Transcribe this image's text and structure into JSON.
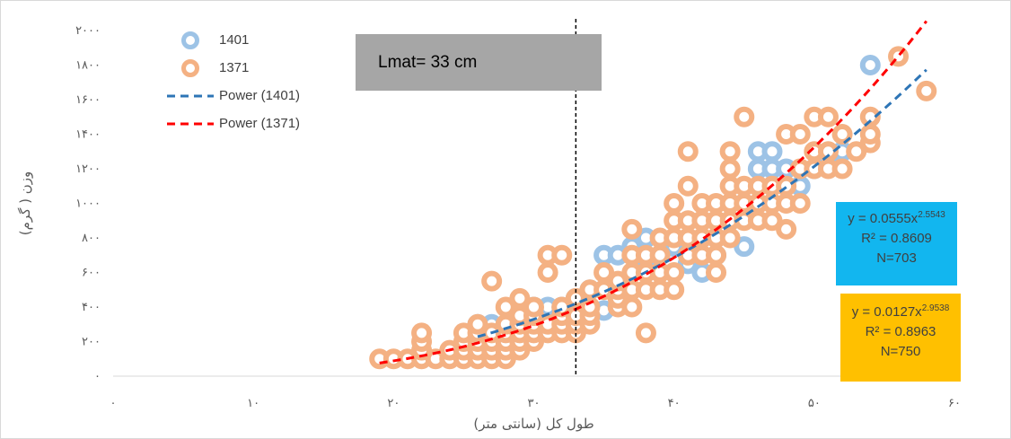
{
  "chart_data": {
    "type": "scatter",
    "title": "",
    "xlabel": "طول کل (سانتی متر)",
    "ylabel": "وزن ( گرم)",
    "xlim": [
      0,
      60
    ],
    "ylim": [
      0,
      2000
    ],
    "x_ticks": [
      0,
      10,
      20,
      30,
      40,
      50,
      60
    ],
    "x_tick_labels": [
      "۰",
      "۱۰",
      "۲۰",
      "۳۰",
      "۴۰",
      "۵۰",
      "۶۰"
    ],
    "y_ticks": [
      0,
      200,
      400,
      600,
      800,
      1000,
      1200,
      1400,
      1600,
      1800,
      2000
    ],
    "y_tick_labels": [
      "۰",
      "۲۰۰",
      "۴۰۰",
      "۶۰۰",
      "۸۰۰",
      "۱۰۰۰",
      "۱۲۰۰",
      "۱۴۰۰",
      "۱۶۰۰",
      "۱۸۰۰",
      "۲۰۰۰"
    ],
    "grid": false,
    "legend_position": "top-left",
    "legend": [
      "1401",
      "1371",
      "Power (1401)",
      "Power (1371)"
    ],
    "reference_line": {
      "x": 33,
      "label": "Lmat= 33 cm"
    },
    "series": [
      {
        "name": "1401",
        "color": "#9dc3e6",
        "points": [
          [
            26,
            300
          ],
          [
            27,
            300
          ],
          [
            28,
            300
          ],
          [
            29,
            350
          ],
          [
            30,
            400
          ],
          [
            31,
            400
          ],
          [
            32,
            400
          ],
          [
            33,
            450
          ],
          [
            34,
            500
          ],
          [
            35,
            380
          ],
          [
            35,
            700
          ],
          [
            36,
            700
          ],
          [
            37,
            750
          ],
          [
            38,
            800
          ],
          [
            38,
            650
          ],
          [
            39,
            700
          ],
          [
            40,
            750
          ],
          [
            41,
            650
          ],
          [
            42,
            600
          ],
          [
            43,
            700
          ],
          [
            44,
            900
          ],
          [
            45,
            1000
          ],
          [
            45,
            750
          ],
          [
            46,
            1200
          ],
          [
            46,
            1300
          ],
          [
            47,
            1300
          ],
          [
            47,
            1200
          ],
          [
            48,
            1200
          ],
          [
            49,
            1100
          ],
          [
            50,
            1200
          ],
          [
            51,
            1250
          ],
          [
            52,
            1300
          ],
          [
            54,
            1800
          ]
        ]
      },
      {
        "name": "1371",
        "color": "#f4b183",
        "points": [
          [
            19,
            100
          ],
          [
            20,
            100
          ],
          [
            21,
            100
          ],
          [
            22,
            100
          ],
          [
            22,
            150
          ],
          [
            22,
            200
          ],
          [
            22,
            250
          ],
          [
            23,
            100
          ],
          [
            24,
            100
          ],
          [
            24,
            150
          ],
          [
            25,
            100
          ],
          [
            25,
            150
          ],
          [
            25,
            200
          ],
          [
            25,
            250
          ],
          [
            26,
            100
          ],
          [
            26,
            150
          ],
          [
            26,
            200
          ],
          [
            26,
            250
          ],
          [
            26,
            300
          ],
          [
            27,
            100
          ],
          [
            27,
            150
          ],
          [
            27,
            200
          ],
          [
            27,
            250
          ],
          [
            27,
            550
          ],
          [
            28,
            100
          ],
          [
            28,
            150
          ],
          [
            28,
            200
          ],
          [
            28,
            250
          ],
          [
            28,
            300
          ],
          [
            28,
            400
          ],
          [
            29,
            150
          ],
          [
            29,
            200
          ],
          [
            29,
            250
          ],
          [
            29,
            300
          ],
          [
            29,
            350
          ],
          [
            29,
            450
          ],
          [
            30,
            200
          ],
          [
            30,
            250
          ],
          [
            30,
            300
          ],
          [
            30,
            350
          ],
          [
            30,
            400
          ],
          [
            31,
            250
          ],
          [
            31,
            300
          ],
          [
            31,
            600
          ],
          [
            31,
            700
          ],
          [
            32,
            250
          ],
          [
            32,
            300
          ],
          [
            32,
            350
          ],
          [
            32,
            400
          ],
          [
            32,
            700
          ],
          [
            33,
            250
          ],
          [
            33,
            300
          ],
          [
            33,
            350
          ],
          [
            33,
            450
          ],
          [
            34,
            300
          ],
          [
            34,
            350
          ],
          [
            34,
            400
          ],
          [
            34,
            500
          ],
          [
            35,
            500
          ],
          [
            35,
            600
          ],
          [
            36,
            400
          ],
          [
            36,
            450
          ],
          [
            36,
            500
          ],
          [
            36,
            550
          ],
          [
            37,
            400
          ],
          [
            37,
            500
          ],
          [
            37,
            600
          ],
          [
            37,
            700
          ],
          [
            37,
            850
          ],
          [
            38,
            250
          ],
          [
            38,
            500
          ],
          [
            38,
            600
          ],
          [
            38,
            700
          ],
          [
            39,
            500
          ],
          [
            39,
            600
          ],
          [
            39,
            700
          ],
          [
            39,
            800
          ],
          [
            40,
            500
          ],
          [
            40,
            600
          ],
          [
            40,
            800
          ],
          [
            40,
            900
          ],
          [
            40,
            1000
          ],
          [
            41,
            700
          ],
          [
            41,
            800
          ],
          [
            41,
            900
          ],
          [
            41,
            1100
          ],
          [
            41,
            1300
          ],
          [
            42,
            700
          ],
          [
            42,
            800
          ],
          [
            42,
            900
          ],
          [
            42,
            1000
          ],
          [
            43,
            600
          ],
          [
            43,
            700
          ],
          [
            43,
            800
          ],
          [
            43,
            900
          ],
          [
            43,
            1000
          ],
          [
            44,
            800
          ],
          [
            44,
            900
          ],
          [
            44,
            1000
          ],
          [
            44,
            1100
          ],
          [
            44,
            1200
          ],
          [
            44,
            1300
          ],
          [
            45,
            900
          ],
          [
            45,
            1000
          ],
          [
            45,
            1100
          ],
          [
            45,
            1500
          ],
          [
            46,
            900
          ],
          [
            46,
            1000
          ],
          [
            46,
            1100
          ],
          [
            47,
            900
          ],
          [
            47,
            1000
          ],
          [
            47,
            1100
          ],
          [
            48,
            850
          ],
          [
            48,
            1000
          ],
          [
            48,
            1100
          ],
          [
            48,
            1400
          ],
          [
            49,
            1000
          ],
          [
            49,
            1200
          ],
          [
            49,
            1400
          ],
          [
            50,
            1200
          ],
          [
            50,
            1300
          ],
          [
            50,
            1500
          ],
          [
            51,
            1200
          ],
          [
            51,
            1300
          ],
          [
            51,
            1500
          ],
          [
            52,
            1200
          ],
          [
            52,
            1400
          ],
          [
            53,
            1300
          ],
          [
            54,
            1350
          ],
          [
            54,
            1400
          ],
          [
            54,
            1500
          ],
          [
            56,
            1850
          ],
          [
            58,
            1650
          ]
        ]
      }
    ],
    "trendlines": [
      {
        "name": "Power (1401)",
        "color": "#2e75b6",
        "a": 0.0555,
        "b": 2.5543,
        "x_range": [
          26,
          58
        ]
      },
      {
        "name": "Power (1371)",
        "color": "#ff0000",
        "a": 0.0127,
        "b": 2.9538,
        "x_range": [
          19,
          58
        ]
      }
    ],
    "annotations": [
      {
        "series": "1401",
        "box_color": "#12b6ef",
        "equation_base": "y = 0.0555x",
        "equation_exp": "2.5543",
        "r2": "R² = 0.8609",
        "n": "N=703"
      },
      {
        "series": "1371",
        "box_color": "#ffc000",
        "equation_base": "y = 0.0127x",
        "equation_exp": "2.9538",
        "r2": "R² = 0.8963",
        "n": "N=750"
      }
    ]
  }
}
